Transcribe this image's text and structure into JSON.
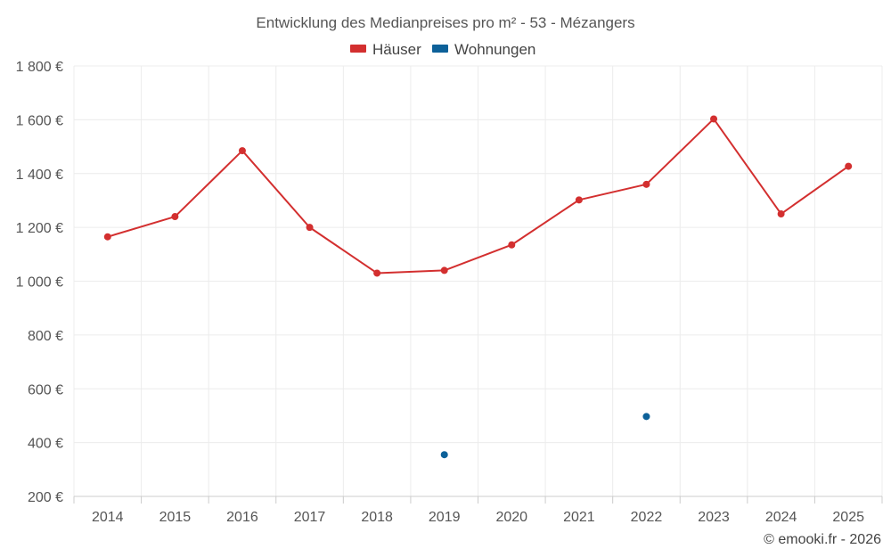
{
  "chart_data": {
    "type": "line",
    "title": "Entwicklung des Medianpreises pro m² - 53 - Mézangers",
    "categories": [
      "2014",
      "2015",
      "2016",
      "2017",
      "2018",
      "2019",
      "2020",
      "2021",
      "2022",
      "2023",
      "2024",
      "2025"
    ],
    "ylim": [
      200,
      1800
    ],
    "yticks": [
      200,
      400,
      600,
      800,
      1000,
      1200,
      1400,
      1600,
      1800
    ],
    "ytick_labels": [
      "200 €",
      "400 €",
      "600 €",
      "800 €",
      "1 000 €",
      "1 200 €",
      "1 400 €",
      "1 600 €",
      "1 800 €"
    ],
    "series": [
      {
        "name": "Häuser",
        "color": "#d32f2f",
        "values": [
          1165,
          1240,
          1485,
          1200,
          1030,
          1040,
          1135,
          1302,
          1360,
          1603,
          1250,
          1427
        ]
      },
      {
        "name": "Wohnungen",
        "color": "#0d6199",
        "values": [
          null,
          null,
          null,
          null,
          null,
          355,
          null,
          null,
          497,
          null,
          null,
          null
        ]
      }
    ],
    "grid": true,
    "legend": "top-center"
  },
  "credit": "© emooki.fr - 2026"
}
